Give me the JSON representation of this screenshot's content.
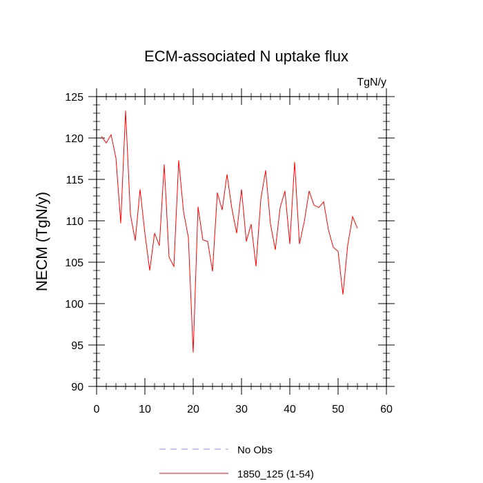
{
  "chart_data": {
    "type": "line",
    "title": "ECM-associated N uptake flux",
    "units": "TgN/y",
    "xlabel": "",
    "ylabel": "NECM  (TgN/y)",
    "xlim": [
      0,
      60
    ],
    "ylim": [
      90,
      125
    ],
    "xticks": [
      0,
      10,
      20,
      30,
      40,
      50,
      60
    ],
    "yticks": [
      90,
      95,
      100,
      105,
      110,
      115,
      120,
      125
    ],
    "x_tick_labels": [
      "0",
      "10",
      "20",
      "30",
      "40",
      "50",
      "60"
    ],
    "y_tick_labels": [
      "90",
      "95",
      "100",
      "105",
      "110",
      "115",
      "120",
      "125"
    ],
    "grid": false,
    "legend_position": "bottom-center",
    "series": [
      {
        "name": "No Obs",
        "color": "#8c8cff",
        "style": "dashed",
        "x": [],
        "values": []
      },
      {
        "name": "1850_125 (1-54)",
        "color": "#ff0000",
        "style": "solid",
        "x": [
          1,
          2,
          3,
          4,
          5,
          6,
          7,
          8,
          9,
          10,
          11,
          12,
          13,
          14,
          15,
          16,
          17,
          18,
          19,
          20,
          21,
          22,
          23,
          24,
          25,
          26,
          27,
          28,
          29,
          30,
          31,
          32,
          33,
          34,
          35,
          36,
          37,
          38,
          39,
          40,
          41,
          42,
          43,
          44,
          45,
          46,
          47,
          48,
          49,
          50,
          51,
          52,
          53,
          54
        ],
        "values": [
          120.2,
          119.4,
          120.4,
          117.6,
          109.7,
          123.3,
          110.8,
          107.6,
          113.8,
          108.5,
          104.0,
          108.5,
          107.0,
          116.8,
          105.6,
          104.5,
          117.3,
          111.1,
          108.0,
          94.1,
          111.7,
          107.7,
          107.5,
          103.9,
          113.4,
          111.3,
          115.6,
          111.5,
          108.5,
          113.8,
          107.5,
          109.6,
          104.5,
          112.6,
          116.1,
          109.6,
          106.5,
          111.6,
          113.6,
          107.2,
          117.1,
          107.2,
          109.9,
          113.6,
          111.9,
          111.6,
          112.3,
          108.9,
          106.8,
          106.3,
          101.1,
          107.1,
          110.5,
          109.1
        ]
      }
    ]
  }
}
